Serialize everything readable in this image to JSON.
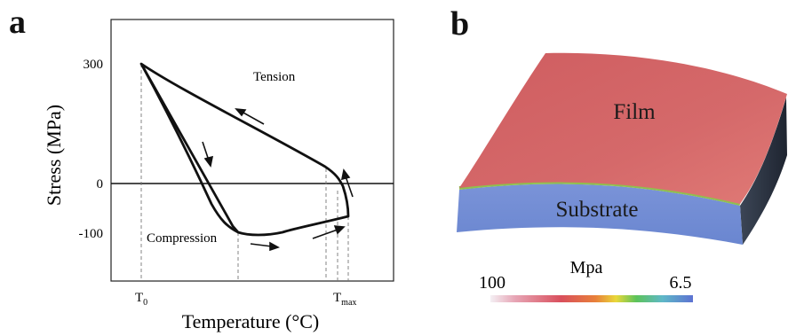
{
  "panel_a": {
    "letter": "a",
    "ylabel": "Stress (MPa)",
    "xlabel": "Temperature (°C)",
    "ytick_300": "300",
    "ytick_0": "0",
    "ytick_neg100": "-100",
    "xtick_t0_base": "T",
    "xtick_t0_sub": "0",
    "xtick_tmax_base": "T",
    "xtick_tmax_sub": "max",
    "label_tension": "Tension",
    "label_compression": "Compression"
  },
  "panel_b": {
    "letter": "b",
    "label_film": "Film",
    "label_substrate": "Substrate",
    "colorbar_title": "Mpa",
    "colorbar_left": "100",
    "colorbar_right": "6.5",
    "film_color": "#d46364",
    "substrate_color": "#6f8bd4"
  },
  "chart_data": {
    "type": "line",
    "xlabel": "Temperature (°C)",
    "ylabel": "Stress (MPa)",
    "yticks": [
      300,
      0,
      -100
    ],
    "xticks": [
      "T0",
      "Tmax"
    ],
    "annotations": [
      "Tension",
      "Compression"
    ]
  }
}
